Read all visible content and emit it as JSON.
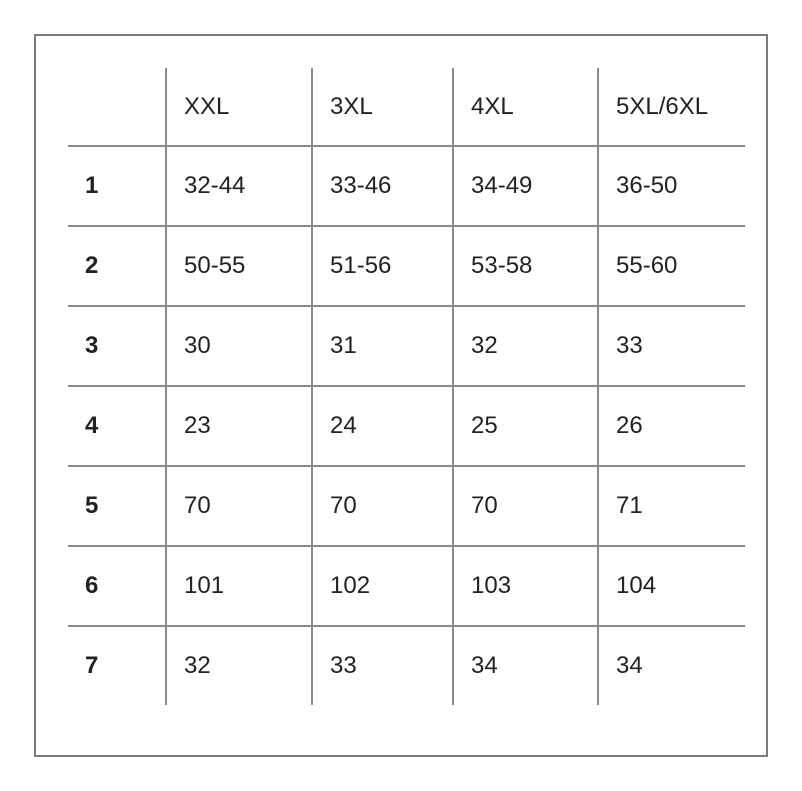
{
  "table": {
    "columns": [
      "",
      "XXL",
      "3XL",
      "4XL",
      "5XL/6XL"
    ],
    "rows": [
      {
        "label": "1",
        "values": [
          "32-44",
          "33-46",
          "34-49",
          "36-50"
        ]
      },
      {
        "label": "2",
        "values": [
          "50-55",
          "51-56",
          "53-58",
          "55-60"
        ]
      },
      {
        "label": "3",
        "values": [
          "30",
          "31",
          "32",
          "33"
        ]
      },
      {
        "label": "4",
        "values": [
          "23",
          "24",
          "25",
          "26"
        ]
      },
      {
        "label": "5",
        "values": [
          "70",
          "70",
          "70",
          "71"
        ]
      },
      {
        "label": "6",
        "values": [
          "101",
          "102",
          "103",
          "104"
        ]
      },
      {
        "label": "7",
        "values": [
          "32",
          "33",
          "34",
          "34"
        ]
      }
    ]
  }
}
